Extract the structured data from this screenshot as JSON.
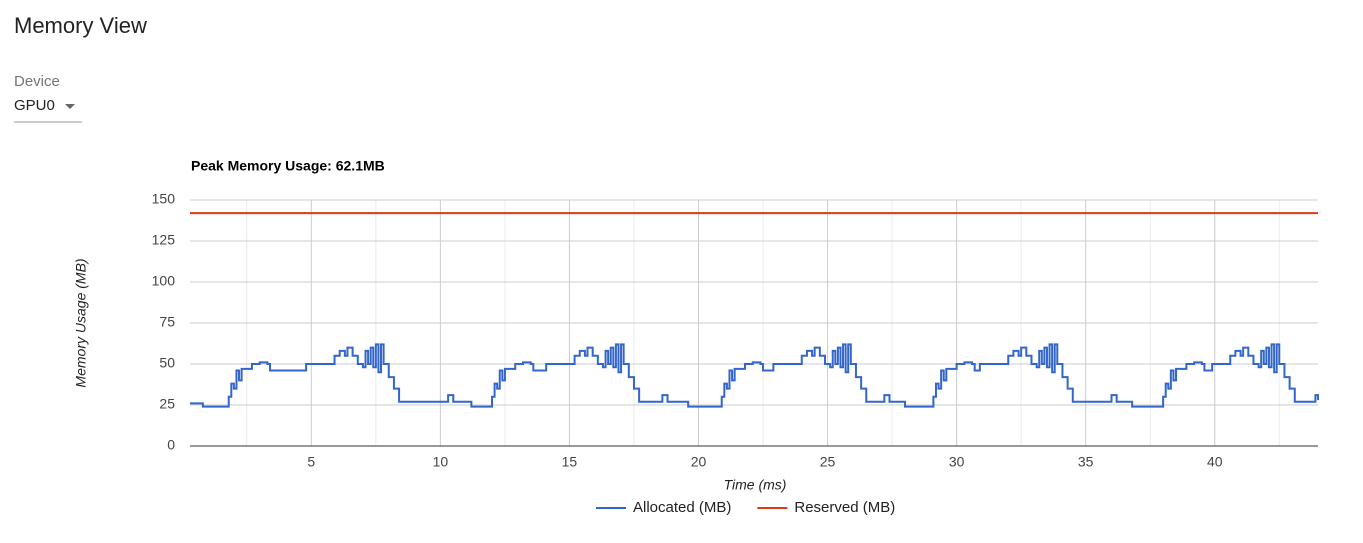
{
  "page": {
    "title": "Memory View"
  },
  "device_selector": {
    "label": "Device",
    "value": "GPU0"
  },
  "chart_data": {
    "type": "line",
    "curve": "step",
    "title": "Peak Memory Usage: 62.1MB",
    "x_label": "Time (ms)",
    "y_label": "Memory Usage (MB)",
    "xlim": [
      0.3,
      44.0
    ],
    "ylim": [
      0,
      150
    ],
    "xticks": [
      5,
      10,
      15,
      20,
      25,
      30,
      35,
      40
    ],
    "x_minor_grid": [
      2.5,
      7.5,
      12.5,
      17.5,
      22.5,
      27.5,
      32.5,
      37.5,
      42.5
    ],
    "yticks": [
      0,
      25,
      50,
      75,
      100,
      125,
      150
    ],
    "grid": true,
    "legend": "bottom",
    "series": [
      {
        "name": "Allocated (MB)",
        "color": "#3366cc",
        "x": [
          0.3,
          0.8,
          1.8,
          1.9,
          2.0,
          2.1,
          2.2,
          2.3,
          2.7,
          3.0,
          3.3,
          3.4,
          4.8,
          5.9,
          6.1,
          6.3,
          6.4,
          6.6,
          6.8,
          7.0,
          7.1,
          7.2,
          7.3,
          7.4,
          7.5,
          7.6,
          7.7,
          7.8,
          8.0,
          8.2,
          8.4,
          10.3,
          10.5,
          11.2,
          12.0,
          12.1,
          12.2,
          12.3,
          12.4,
          12.5,
          12.9,
          13.2,
          13.5,
          13.6,
          14.1,
          15.2,
          15.4,
          15.6,
          15.7,
          15.9,
          16.1,
          16.3,
          16.4,
          16.5,
          16.6,
          16.7,
          16.8,
          16.9,
          17.0,
          17.1,
          17.3,
          17.5,
          17.7,
          18.6,
          18.8,
          19.6,
          20.9,
          21.0,
          21.1,
          21.2,
          21.3,
          21.4,
          21.8,
          22.1,
          22.4,
          22.5,
          22.9,
          24.0,
          24.2,
          24.4,
          24.5,
          24.7,
          24.9,
          25.1,
          25.2,
          25.3,
          25.4,
          25.5,
          25.6,
          25.7,
          25.8,
          25.9,
          26.1,
          26.3,
          26.5,
          27.2,
          27.4,
          28.0,
          29.1,
          29.2,
          29.3,
          29.4,
          29.5,
          29.6,
          30.0,
          30.3,
          30.6,
          30.7,
          30.9,
          32.0,
          32.2,
          32.4,
          32.5,
          32.7,
          32.9,
          33.1,
          33.2,
          33.3,
          33.4,
          33.5,
          33.6,
          33.7,
          33.8,
          33.9,
          34.1,
          34.3,
          34.5,
          36.0,
          36.2,
          36.8,
          38.0,
          38.1,
          38.2,
          38.3,
          38.4,
          38.5,
          38.9,
          39.2,
          39.5,
          39.6,
          39.9,
          40.6,
          40.8,
          41.0,
          41.1,
          41.3,
          41.5,
          41.7,
          41.8,
          41.9,
          42.0,
          42.1,
          42.2,
          42.3,
          42.4,
          42.5,
          42.7,
          42.9,
          43.1,
          43.9,
          44.0
        ],
        "values": [
          26,
          24,
          30,
          38,
          35,
          46,
          40,
          47,
          50,
          51,
          50,
          46,
          50,
          55,
          58,
          55,
          60,
          55,
          50,
          48,
          58,
          50,
          60,
          48,
          62,
          45,
          62,
          50,
          42,
          35,
          27,
          31,
          27,
          24,
          30,
          38,
          35,
          46,
          40,
          47,
          50,
          51,
          50,
          46,
          50,
          55,
          58,
          55,
          60,
          55,
          50,
          48,
          58,
          50,
          60,
          48,
          62,
          45,
          62,
          50,
          42,
          35,
          27,
          31,
          27,
          24,
          30,
          38,
          35,
          46,
          40,
          47,
          50,
          51,
          50,
          46,
          50,
          55,
          58,
          55,
          60,
          55,
          50,
          48,
          58,
          50,
          60,
          48,
          62,
          45,
          62,
          50,
          42,
          35,
          27,
          31,
          27,
          24,
          30,
          38,
          35,
          46,
          40,
          47,
          50,
          51,
          50,
          46,
          50,
          55,
          58,
          55,
          60,
          55,
          50,
          48,
          58,
          50,
          60,
          48,
          62,
          45,
          62,
          50,
          42,
          35,
          27,
          31,
          27,
          24,
          30,
          38,
          35,
          46,
          40,
          47,
          50,
          51,
          50,
          46,
          50,
          55,
          58,
          55,
          60,
          55,
          50,
          48,
          58,
          50,
          60,
          48,
          62,
          45,
          62,
          50,
          42,
          35,
          27,
          31,
          28
        ]
      },
      {
        "name": "Reserved (MB)",
        "color": "#dc3912",
        "x": [
          0.3,
          44.0
        ],
        "values": [
          142,
          142
        ]
      }
    ]
  }
}
